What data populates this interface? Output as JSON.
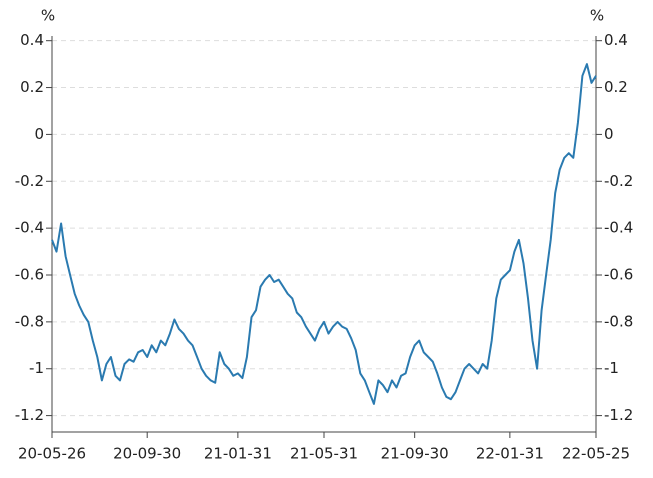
{
  "chart_data": {
    "type": "line",
    "ylabel": "%",
    "y2label": "%",
    "categories": [
      "20-05-26",
      null,
      null,
      null,
      null,
      null,
      null,
      null,
      null,
      null,
      null,
      null,
      null,
      null,
      null,
      null,
      null,
      null,
      null,
      null,
      null,
      "20-09-30",
      null,
      null,
      null,
      null,
      null,
      null,
      null,
      null,
      null,
      null,
      null,
      null,
      null,
      null,
      null,
      null,
      null,
      null,
      null,
      "21-01-31",
      null,
      null,
      null,
      null,
      null,
      null,
      null,
      null,
      null,
      null,
      null,
      null,
      null,
      null,
      null,
      null,
      null,
      null,
      "21-05-31",
      null,
      null,
      null,
      null,
      null,
      null,
      null,
      null,
      null,
      null,
      null,
      null,
      null,
      null,
      null,
      null,
      null,
      null,
      null,
      "21-09-30",
      null,
      null,
      null,
      null,
      null,
      null,
      null,
      null,
      null,
      null,
      null,
      null,
      null,
      null,
      null,
      null,
      null,
      null,
      null,
      null,
      "22-01-31",
      null,
      null,
      null,
      null,
      null,
      null,
      null,
      null,
      null,
      null,
      null,
      null,
      null,
      null,
      null,
      null,
      null,
      null,
      "22-05-25"
    ],
    "series": [
      {
        "color": "#2a7ab0",
        "values": [
          -0.45,
          -0.5,
          -0.38,
          -0.52,
          -0.6,
          -0.68,
          -0.73,
          -0.77,
          -0.8,
          -0.88,
          -0.95,
          -1.05,
          -0.98,
          -0.95,
          -1.03,
          -1.05,
          -0.98,
          -0.96,
          -0.97,
          -0.93,
          -0.92,
          -0.95,
          -0.9,
          -0.93,
          -0.88,
          -0.9,
          -0.85,
          -0.79,
          -0.83,
          -0.85,
          -0.88,
          -0.9,
          -0.95,
          -1.0,
          -1.03,
          -1.05,
          -1.06,
          -0.93,
          -0.98,
          -1.0,
          -1.03,
          -1.02,
          -1.04,
          -0.95,
          -0.78,
          -0.75,
          -0.65,
          -0.62,
          -0.6,
          -0.63,
          -0.62,
          -0.65,
          -0.68,
          -0.7,
          -0.76,
          -0.78,
          -0.82,
          -0.85,
          -0.88,
          -0.83,
          -0.8,
          -0.85,
          -0.82,
          -0.8,
          -0.82,
          -0.83,
          -0.87,
          -0.92,
          -1.02,
          -1.05,
          -1.1,
          -1.15,
          -1.05,
          -1.07,
          -1.1,
          -1.05,
          -1.08,
          -1.03,
          -1.02,
          -0.95,
          -0.9,
          -0.88,
          -0.93,
          -0.95,
          -0.97,
          -1.02,
          -1.08,
          -1.12,
          -1.13,
          -1.1,
          -1.05,
          -1.0,
          -0.98,
          -1.0,
          -1.02,
          -0.98,
          -1.0,
          -0.88,
          -0.7,
          -0.62,
          -0.6,
          -0.58,
          -0.5,
          -0.45,
          -0.55,
          -0.7,
          -0.88,
          -1.0,
          -0.75,
          -0.6,
          -0.45,
          -0.25,
          -0.15,
          -0.1,
          -0.08,
          -0.1,
          0.05,
          0.25,
          0.3,
          0.22,
          0.25
        ]
      }
    ],
    "ylim": [
      -1.27,
      0.42
    ],
    "yticks": [
      0.4,
      0.2,
      0,
      -0.2,
      -0.4,
      -0.6,
      -0.8,
      -1,
      -1.2
    ],
    "y2lim": [
      -1.27,
      0.42
    ],
    "y2ticks": [
      0.4,
      0.2,
      0,
      -0.2,
      -0.4,
      -0.6,
      -0.8,
      -1,
      -1.2
    ],
    "grid": true
  }
}
